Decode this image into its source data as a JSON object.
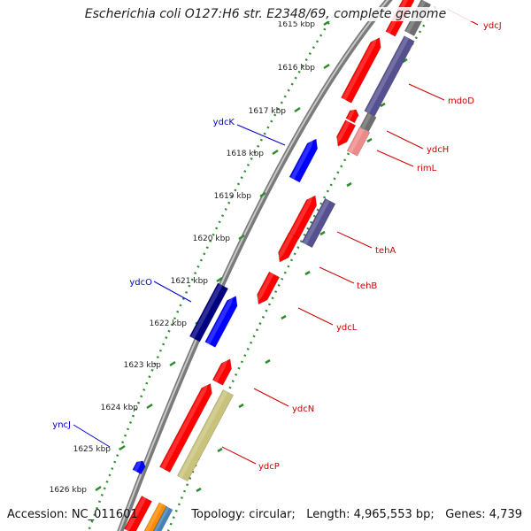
{
  "title": "Escherichia coli O127:H6 str. E2348/69, complete genome",
  "accession": "Accession: NC_011601",
  "topology": "Topology: circular;",
  "length": "Length: 4,965,553 bp;",
  "genes": "Genes: 4,739",
  "colors": {
    "backbone": "#808080",
    "tick_track": "#2e8b2e",
    "forward_gene": "#ff0000",
    "reverse_gene": "#ff0000",
    "purple_gene": "#55508f",
    "navy_gene": "#000080",
    "blue_gene": "#0000ff",
    "gray_gene": "#6e6e6e",
    "pink_gene": "#ef8a8a",
    "khaki_gene": "#c9c27a",
    "orange_gene": "#ff8c00",
    "steel_gene": "#4682b4",
    "red_label": "#cc0000",
    "blue_label": "#0000cc"
  },
  "ticks": [
    {
      "label": "1615 kbp",
      "kbp": 1615
    },
    {
      "label": "1616 kbp",
      "kbp": 1616
    },
    {
      "label": "1617 kbp",
      "kbp": 1617
    },
    {
      "label": "1618 kbp",
      "kbp": 1618
    },
    {
      "label": "1619 kbp",
      "kbp": 1619
    },
    {
      "label": "1620 kbp",
      "kbp": 1620
    },
    {
      "label": "1621 kbp",
      "kbp": 1621
    },
    {
      "label": "1622 kbp",
      "kbp": 1622
    },
    {
      "label": "1623 kbp",
      "kbp": 1623
    },
    {
      "label": "1624 kbp",
      "kbp": 1624
    },
    {
      "label": "1625 kbp",
      "kbp": 1625
    },
    {
      "label": "1626 kbp",
      "kbp": 1626
    }
  ],
  "gene_labels": [
    {
      "name": "ydcJ",
      "side": "right",
      "color": "red"
    },
    {
      "name": "mdoD",
      "side": "right",
      "color": "red"
    },
    {
      "name": "ydcK",
      "side": "left",
      "color": "blue"
    },
    {
      "name": "ydcH",
      "side": "right",
      "color": "red"
    },
    {
      "name": "rimL",
      "side": "right",
      "color": "red"
    },
    {
      "name": "tehA",
      "side": "right",
      "color": "red"
    },
    {
      "name": "tehB",
      "side": "right",
      "color": "red"
    },
    {
      "name": "ydcO",
      "side": "left",
      "color": "blue"
    },
    {
      "name": "ydcL",
      "side": "right",
      "color": "red"
    },
    {
      "name": "ydcN",
      "side": "right",
      "color": "red"
    },
    {
      "name": "yncJ",
      "side": "left",
      "color": "blue"
    },
    {
      "name": "ydcP",
      "side": "right",
      "color": "red"
    }
  ]
}
